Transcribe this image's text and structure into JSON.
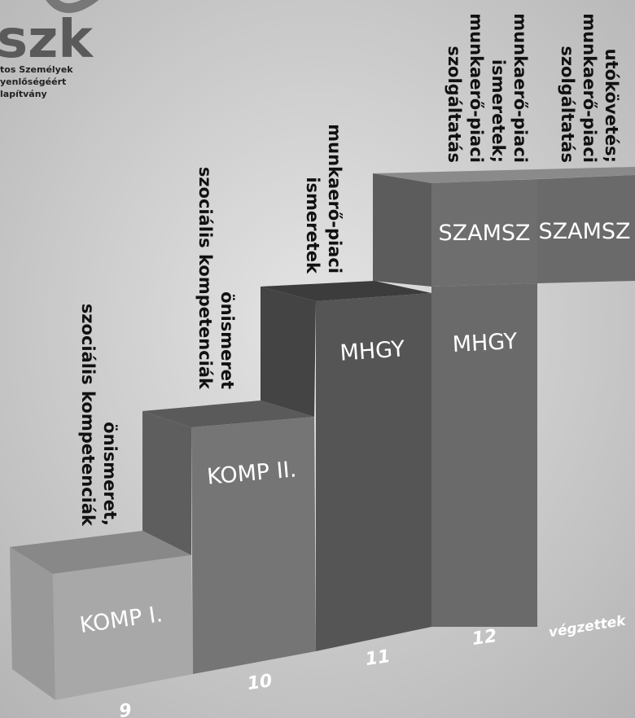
{
  "logo": {
    "text": "szk",
    "lines": [
      "tos Személyek",
      "yenlőségéért",
      "lapítvány"
    ]
  },
  "columns": [
    {
      "grade": "9",
      "label": "KOMP I.",
      "topics": [
        "önismeret,",
        "szociális kompetenciák"
      ]
    },
    {
      "grade": "10",
      "label": "KOMP II.",
      "topics": [
        "önismeret",
        "szociális kompetenciák"
      ]
    },
    {
      "grade": "11",
      "label": "MHGY",
      "topics": [
        "munkaerő-piaci",
        "ismeretek"
      ]
    },
    {
      "grade": "12",
      "label": "MHGY",
      "upper_label": "SZAMSZ",
      "topics": [
        "munkaerő-piaci",
        "ismeretek;",
        "munkaerő-piaci",
        "szolgáltatás"
      ]
    },
    {
      "grade": "végzettek",
      "upper_label": "SZAMSZ",
      "topics": [
        "utókövetés;",
        "munkaerő-piaci",
        "szolgáltatás"
      ]
    }
  ]
}
